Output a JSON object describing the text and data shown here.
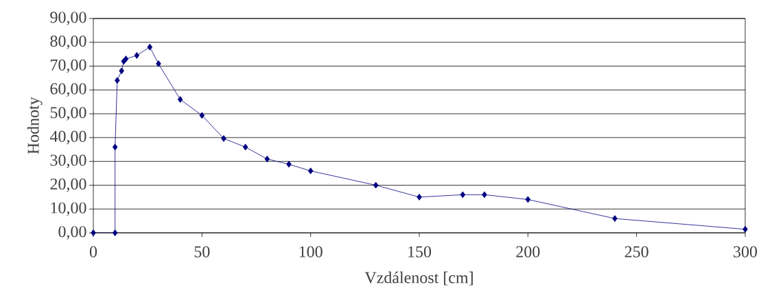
{
  "chart_data": {
    "type": "line",
    "xlabel": "Vzdálenost [cm]",
    "ylabel": "Hodnoty",
    "x": [
      0,
      10,
      10,
      11,
      13,
      14,
      15,
      20,
      26,
      30,
      40,
      50,
      60,
      70,
      80,
      90,
      100,
      130,
      150,
      170,
      180,
      200,
      240,
      300
    ],
    "series": [
      {
        "color": "#000080",
        "values": [
          0,
          0,
          36,
          64,
          68,
          72,
          73,
          74.5,
          78,
          71,
          56,
          49.3,
          39.6,
          36,
          31,
          28.8,
          26,
          20,
          15,
          16,
          16,
          14,
          6,
          1.5
        ]
      }
    ],
    "xlim": [
      0,
      300
    ],
    "xticks": [
      0,
      50,
      100,
      150,
      200,
      250,
      300
    ],
    "ylim": [
      0,
      90
    ],
    "yticks": [
      {
        "value": 0,
        "label": "0,00"
      },
      {
        "value": 10,
        "label": "10,00"
      },
      {
        "value": 20,
        "label": "20,00"
      },
      {
        "value": 30,
        "label": "30,00"
      },
      {
        "value": 40,
        "label": "40,00"
      },
      {
        "value": 50,
        "label": "50,00"
      },
      {
        "value": 60,
        "label": "60,00"
      },
      {
        "value": 70,
        "label": "70,00"
      },
      {
        "value": 80,
        "label": "80,00"
      },
      {
        "value": 90,
        "label": "90,00"
      }
    ],
    "grid": "y",
    "marker": "diamond",
    "line_style": "solid"
  }
}
